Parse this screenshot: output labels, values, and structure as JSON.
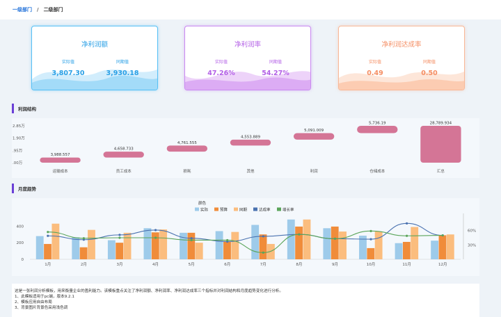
{
  "breadcrumb": {
    "level1": "一级部门",
    "separator": "/",
    "level2": "二级部门"
  },
  "cards": [
    {
      "title": "净利润额",
      "actual_label": "实际值",
      "prior_label": "同期值",
      "actual": "3,807.30",
      "prior": "3,930.18"
    },
    {
      "title": "净利润率",
      "actual_label": "实际值",
      "prior_label": "同期值",
      "actual": "47.26%",
      "prior": "54.27%"
    },
    {
      "title": "净利润达成率",
      "actual_label": "实际值",
      "prior_label": "同期值",
      "actual": "0.49",
      "prior": "0.50"
    }
  ],
  "sections": {
    "profit_structure": "利润结构",
    "monthly_trend": "月度趋势"
  },
  "description": {
    "intro": "这是一张利润分析模板，用来衡量企业的盈利能力。该模板重点关注了净利润额、净利润率、净利润达成率三个指标并对利润结构和月度趋势变化进行分析。",
    "items": [
      "1、此模板适用于pc端，版本9.2.1",
      "2、模板应用自由布局",
      "3、背景图片背景色采用浅色调"
    ]
  },
  "chart_data": [
    {
      "type": "bar",
      "subtype": "waterfall",
      "title": "利润结构",
      "categories": [
        "运输成本",
        "员工成本",
        "损耗",
        "其他",
        "利润",
        "仓储成本",
        "汇总"
      ],
      "values": [
        3988.557,
        4658.733,
        4761.555,
        4553.889,
        5091.009,
        5736.19,
        28789.934
      ],
      "labels": [
        "3,988.557",
        "4,658.733",
        "4,761.555",
        "4,553.889",
        "5,091.009",
        "5,736.19",
        "28,789.934"
      ],
      "y_tick_labels": [
        "2.85万",
        "1.90万",
        ".95万",
        ".00万"
      ],
      "ylim": [
        0,
        28789.934
      ],
      "color": "#d47596"
    },
    {
      "type": "bar",
      "title": "月度趋势",
      "legend_title": "颜色",
      "categories": [
        "1月",
        "2月",
        "3月",
        "4月",
        "5月",
        "6月",
        "7月",
        "8月",
        "9月",
        "10月",
        "11月",
        "12月"
      ],
      "series": [
        {
          "name": "实际",
          "kind": "bar",
          "color": "#9ecbea",
          "values": [
            280,
            265,
            230,
            375,
            320,
            340,
            415,
            480,
            375,
            285,
            195,
            225
          ]
        },
        {
          "name": "预算",
          "kind": "bar",
          "color": "#f08c3a",
          "values": [
            185,
            145,
            200,
            325,
            320,
            220,
            300,
            395,
            395,
            135,
            210,
            290
          ]
        },
        {
          "name": "同期",
          "kind": "bar",
          "color": "#fbbd7e",
          "values": [
            430,
            355,
            320,
            360,
            200,
            330,
            185,
            480,
            335,
            335,
            390,
            300
          ]
        },
        {
          "name": "达成率",
          "kind": "line",
          "color": "#4a72b0",
          "values": [
            49,
            41,
            51,
            61,
            44,
            37,
            48,
            52,
            43,
            42,
            75,
            50
          ]
        },
        {
          "name": "增长率",
          "kind": "line",
          "color": "#5aa55a",
          "values": [
            57,
            44,
            45,
            45,
            40,
            40,
            14,
            52,
            43,
            59,
            49,
            50
          ]
        }
      ],
      "y_left_ticks": [
        "0",
        "200",
        "400"
      ],
      "y_left_range": [
        0,
        520
      ],
      "y_right_ticks": [
        "30%",
        "60%"
      ],
      "y_right_range": [
        0,
        90
      ]
    }
  ]
}
